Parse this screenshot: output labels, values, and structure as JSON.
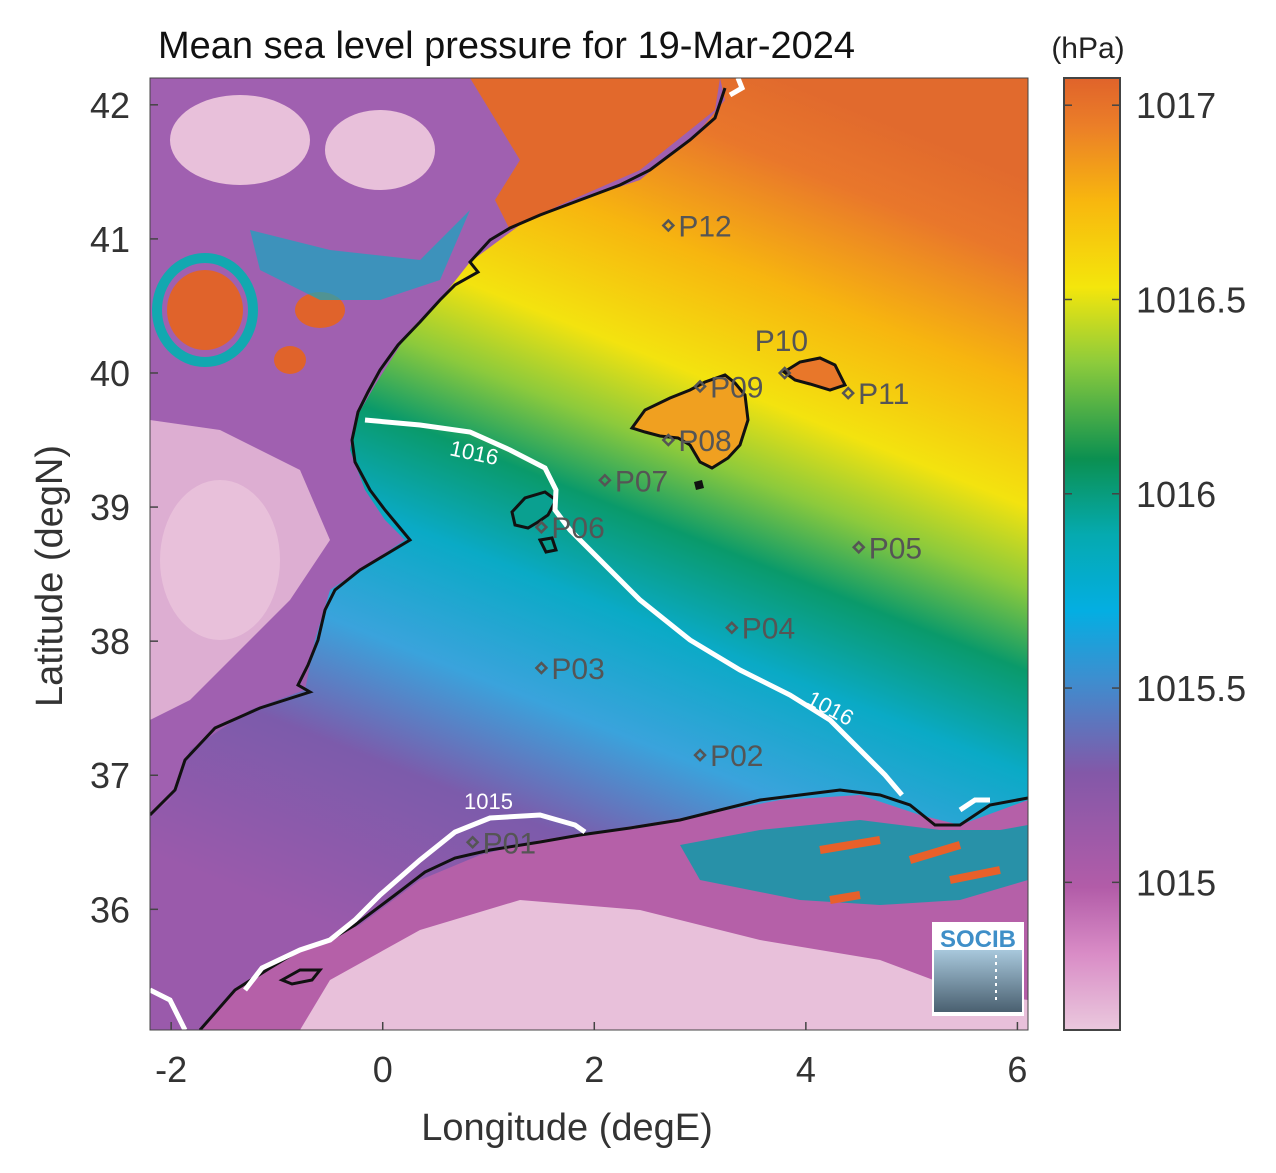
{
  "title": "Mean sea level pressure for 19-Mar-2024",
  "map": {
    "lon_range": [
      -2.2,
      6.1
    ],
    "lat_range": [
      35.1,
      42.2
    ],
    "xlabel": "Longitude (degE)",
    "ylabel": "Latitude (degN)",
    "x_ticks": [
      {
        "value": -2,
        "label": "-2"
      },
      {
        "value": 0,
        "label": "0"
      },
      {
        "value": 2,
        "label": "2"
      },
      {
        "value": 4,
        "label": "4"
      },
      {
        "value": 6,
        "label": "6"
      }
    ],
    "y_ticks": [
      {
        "value": 36,
        "label": "36"
      },
      {
        "value": 37,
        "label": "37"
      },
      {
        "value": 38,
        "label": "38"
      },
      {
        "value": 39,
        "label": "39"
      },
      {
        "value": 40,
        "label": "40"
      },
      {
        "value": 41,
        "label": "41"
      },
      {
        "value": 42,
        "label": "42"
      }
    ],
    "contours": [
      {
        "value": 1016,
        "label": "1016"
      },
      {
        "value": 1015,
        "label": "1015"
      }
    ],
    "points": [
      {
        "name": "P01",
        "lon": 0.85,
        "lat": 36.5
      },
      {
        "name": "P02",
        "lon": 3.0,
        "lat": 37.15
      },
      {
        "name": "P03",
        "lon": 1.5,
        "lat": 37.8
      },
      {
        "name": "P04",
        "lon": 3.3,
        "lat": 38.1
      },
      {
        "name": "P05",
        "lon": 4.5,
        "lat": 38.7
      },
      {
        "name": "P06",
        "lon": 1.5,
        "lat": 38.85
      },
      {
        "name": "P07",
        "lon": 2.1,
        "lat": 39.2
      },
      {
        "name": "P08",
        "lon": 2.7,
        "lat": 39.5
      },
      {
        "name": "P09",
        "lon": 3.0,
        "lat": 39.9
      },
      {
        "name": "P10",
        "lon": 3.8,
        "lat": 40.0
      },
      {
        "name": "P11",
        "lon": 4.4,
        "lat": 39.85
      },
      {
        "name": "P12",
        "lon": 2.7,
        "lat": 41.1
      }
    ],
    "logo_text": "SOCIB"
  },
  "colorbar": {
    "unit": "(hPa)",
    "range": [
      1014.62,
      1017.07
    ],
    "ticks": [
      {
        "value": 1015,
        "label": "1015"
      },
      {
        "value": 1015.5,
        "label": "1015.5"
      },
      {
        "value": 1016,
        "label": "1016"
      },
      {
        "value": 1016.5,
        "label": "1016.5"
      },
      {
        "value": 1017,
        "label": "1017"
      }
    ],
    "colors": [
      "#e9c6dc",
      "#b25ca8",
      "#8458a8",
      "#3fa1dc",
      "#05aac4",
      "#0a9058",
      "#9ccf3c",
      "#f4e40e",
      "#f6b30e",
      "#e8742a",
      "#e0632b"
    ]
  }
}
